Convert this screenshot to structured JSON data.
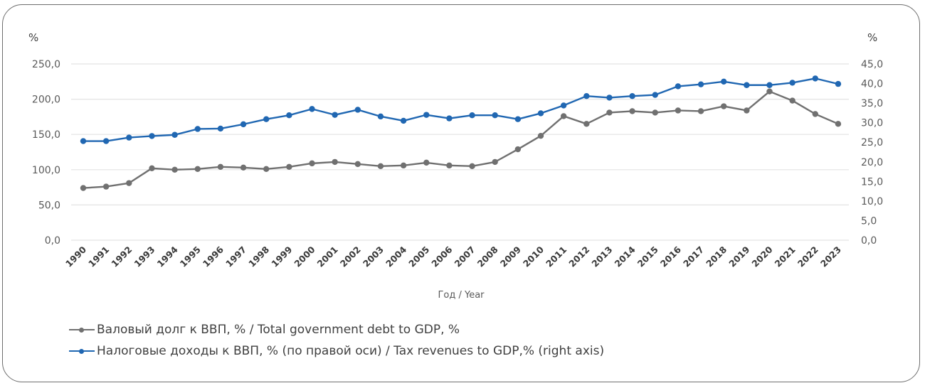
{
  "chart_data": {
    "type": "line",
    "title": "",
    "xlabel": "Год / Year",
    "ylabel_left": "%",
    "ylabel_right": "%",
    "grid": true,
    "legend_position": "bottom-left",
    "x": [
      "1990",
      "1991",
      "1992",
      "1993",
      "1994",
      "1995",
      "1996",
      "1997",
      "1998",
      "1999",
      "2000",
      "2001",
      "2002",
      "2003",
      "2004",
      "2005",
      "2006",
      "2007",
      "2008",
      "2009",
      "2010",
      "2011",
      "2012",
      "2013",
      "2014",
      "2015",
      "2016",
      "2017",
      "2018",
      "2019",
      "2020",
      "2021",
      "2022",
      "2023"
    ],
    "y_left": {
      "range": [
        0,
        250
      ],
      "ticks": [
        "0,0",
        "50,0",
        "100,0",
        "150,0",
        "200,0",
        "250,0"
      ],
      "tick_values": [
        0,
        50,
        100,
        150,
        200,
        250
      ]
    },
    "y_right": {
      "range": [
        0,
        45
      ],
      "ticks": [
        "0,0",
        "5,0",
        "10,0",
        "15,0",
        "20,0",
        "25,0",
        "30,0",
        "35,0",
        "40,0",
        "45,0"
      ],
      "tick_values": [
        0,
        5,
        10,
        15,
        20,
        25,
        30,
        35,
        40,
        45
      ]
    },
    "series": [
      {
        "name": "Валовый долг к ВВП, % / Total government debt to GDP, %",
        "axis": "left",
        "color": "#707070",
        "values": [
          74,
          76,
          81,
          102,
          100,
          101,
          104,
          103,
          101,
          104,
          109,
          111,
          108,
          105,
          106,
          110,
          106,
          105,
          111,
          129,
          148,
          176,
          165,
          181,
          183,
          181,
          184,
          183,
          190,
          184,
          211,
          198,
          179,
          165
        ]
      },
      {
        "name": "Налоговые доходы к ВВП, % (по правой оси) / Tax revenues to GDP,% (right axis)",
        "axis": "right",
        "color": "#2067b2",
        "values": [
          25.3,
          25.3,
          26.2,
          26.6,
          26.9,
          28.4,
          28.5,
          29.6,
          30.9,
          31.9,
          33.5,
          32.0,
          33.3,
          31.6,
          30.5,
          32.0,
          31.1,
          31.9,
          31.9,
          30.9,
          32.4,
          34.4,
          36.8,
          36.4,
          36.8,
          37.1,
          39.3,
          39.8,
          40.5,
          39.6,
          39.6,
          40.2,
          41.3,
          39.9
        ]
      }
    ]
  }
}
